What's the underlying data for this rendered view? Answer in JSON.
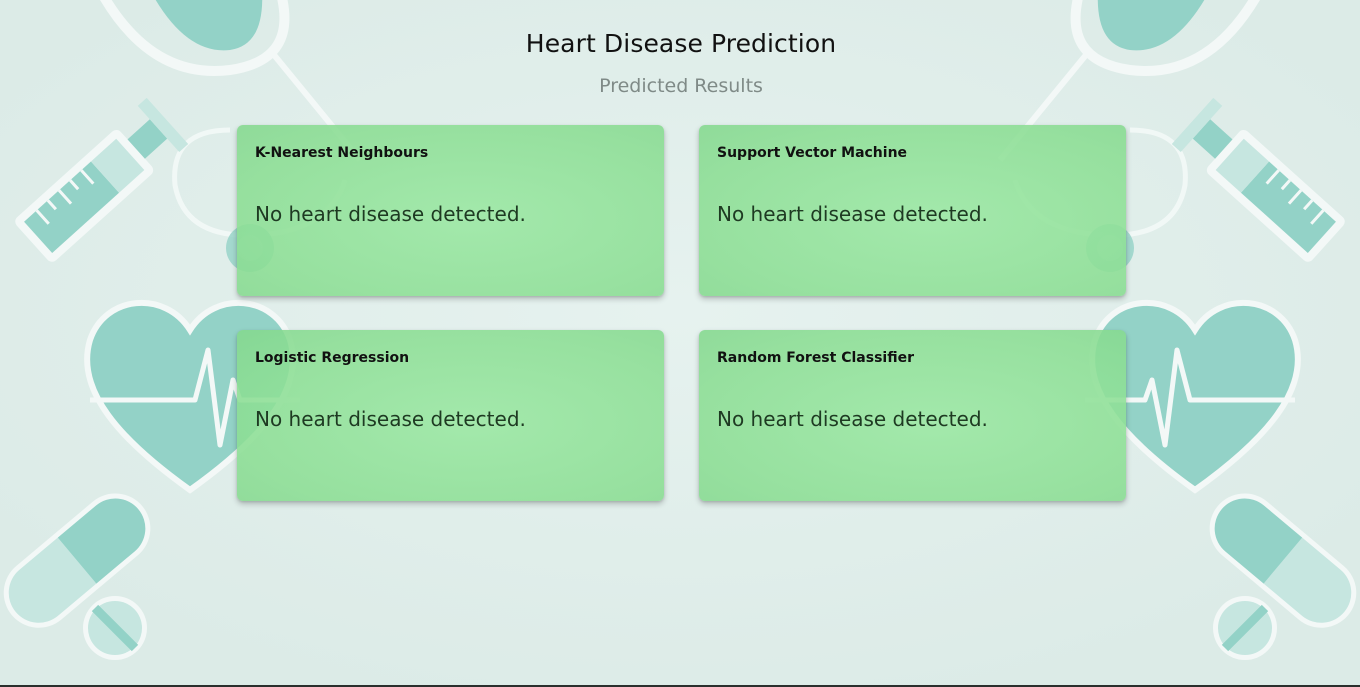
{
  "header": {
    "title": "Heart Disease Prediction",
    "subtitle": "Predicted Results"
  },
  "results": [
    {
      "model": "K-Nearest Neighbours",
      "result": "No heart disease detected."
    },
    {
      "model": "Support Vector Machine",
      "result": "No heart disease detected."
    },
    {
      "model": "Logistic Regression",
      "result": "No heart disease detected."
    },
    {
      "model": "Random Forest Classifier",
      "result": "No heart disease detected."
    }
  ],
  "colors": {
    "background": "#e0eeeb",
    "card": "#93e09c",
    "decor_teal": "#93d2c7",
    "decor_light": "#c6e6e0"
  },
  "decorations": [
    "stethoscope-icon",
    "syringe-icon",
    "heart-pulse-icon",
    "capsule-icon",
    "pill-icon"
  ]
}
